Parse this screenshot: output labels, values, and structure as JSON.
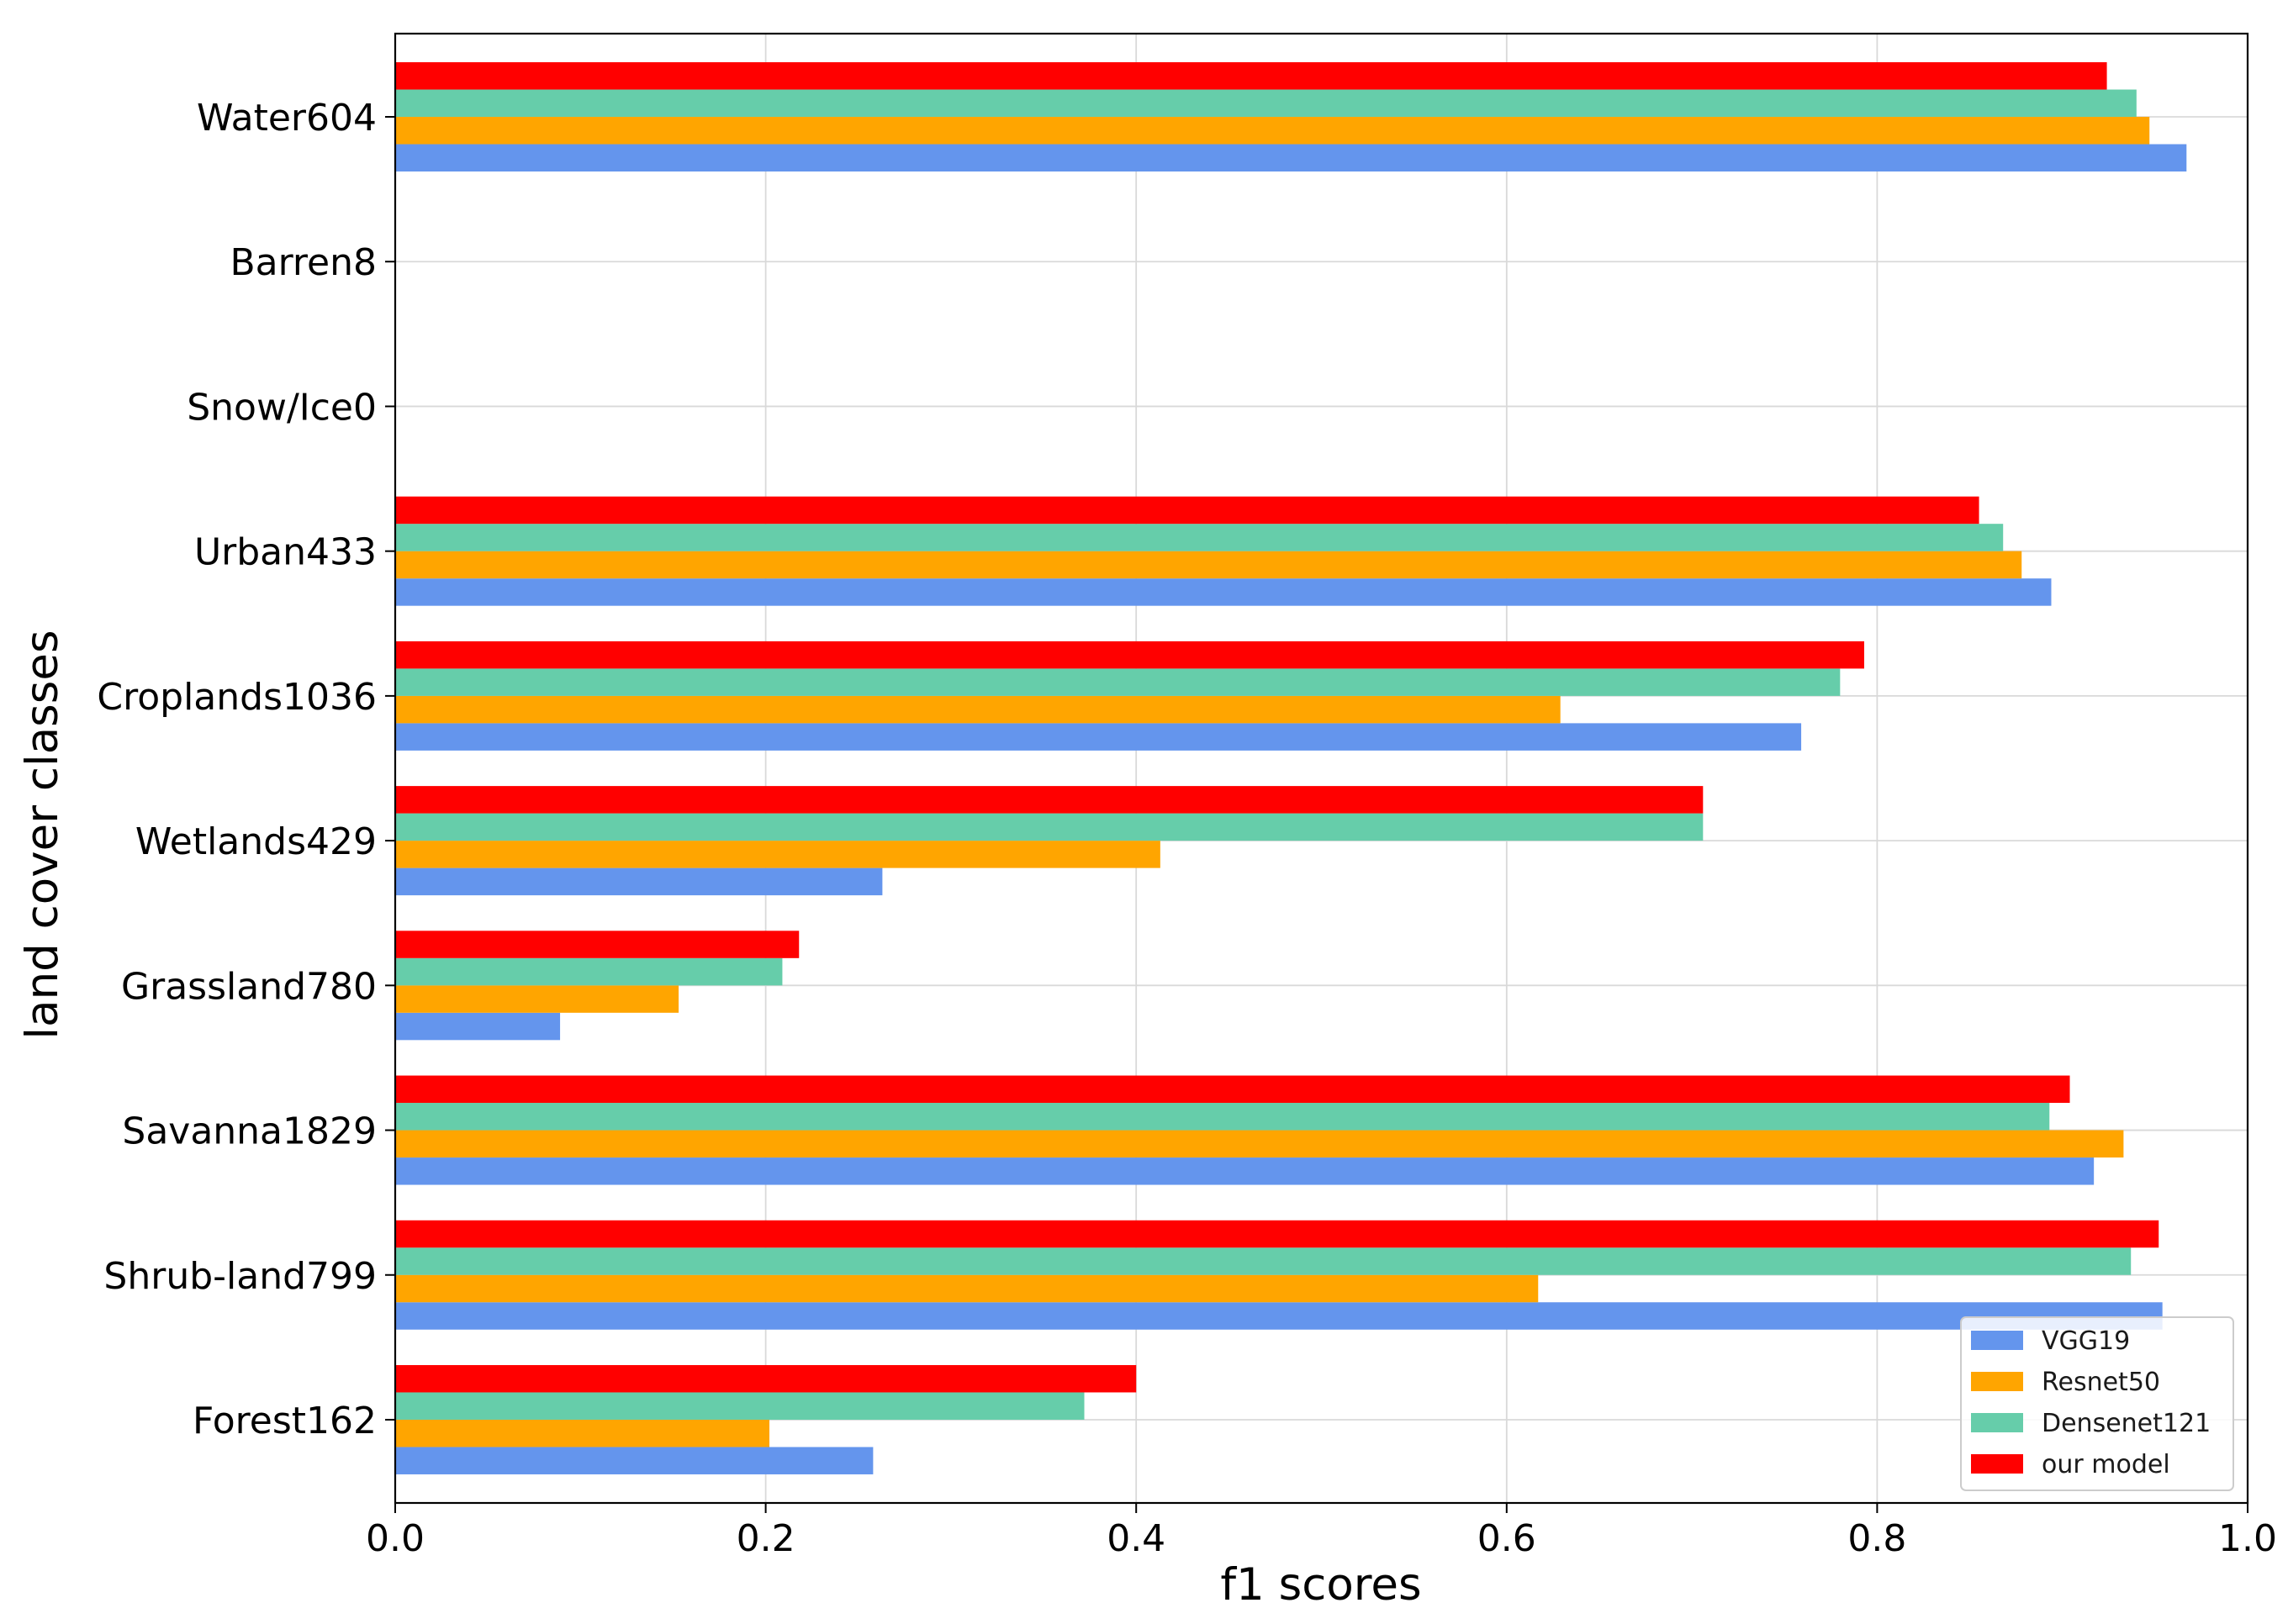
{
  "chart_data": {
    "type": "bar",
    "orientation": "horizontal",
    "title": "",
    "xlabel": "f1 scores",
    "ylabel": "land cover classes",
    "xlim": [
      0.0,
      1.0
    ],
    "xticks": [
      "0.0",
      "0.2",
      "0.4",
      "0.6",
      "0.8",
      "1.0"
    ],
    "grid": true,
    "legend_position": "bottom-right",
    "categories": [
      "Forest162",
      "Shrub-land799",
      "Savanna1829",
      "Grassland780",
      "Wetlands429",
      "Croplands1036",
      "Urban433",
      "Snow/Ice0",
      "Barren8",
      "Water604"
    ],
    "series": [
      {
        "name": "VGG19",
        "color": "#6495ED",
        "values": [
          0.258,
          0.954,
          0.917,
          0.089,
          0.263,
          0.759,
          0.894,
          0.0,
          0.0,
          0.967
        ]
      },
      {
        "name": "Resnet50",
        "color": "#FFA500",
        "values": [
          0.202,
          0.617,
          0.933,
          0.153,
          0.413,
          0.629,
          0.878,
          0.0,
          0.0,
          0.947
        ]
      },
      {
        "name": "Densenet121",
        "color": "#66CDAA",
        "values": [
          0.372,
          0.937,
          0.893,
          0.209,
          0.706,
          0.78,
          0.868,
          0.0,
          0.0,
          0.94
        ]
      },
      {
        "name": "our model",
        "color": "#FF0000",
        "values": [
          0.4,
          0.952,
          0.904,
          0.218,
          0.706,
          0.793,
          0.855,
          0.0,
          0.0,
          0.924
        ]
      }
    ]
  }
}
